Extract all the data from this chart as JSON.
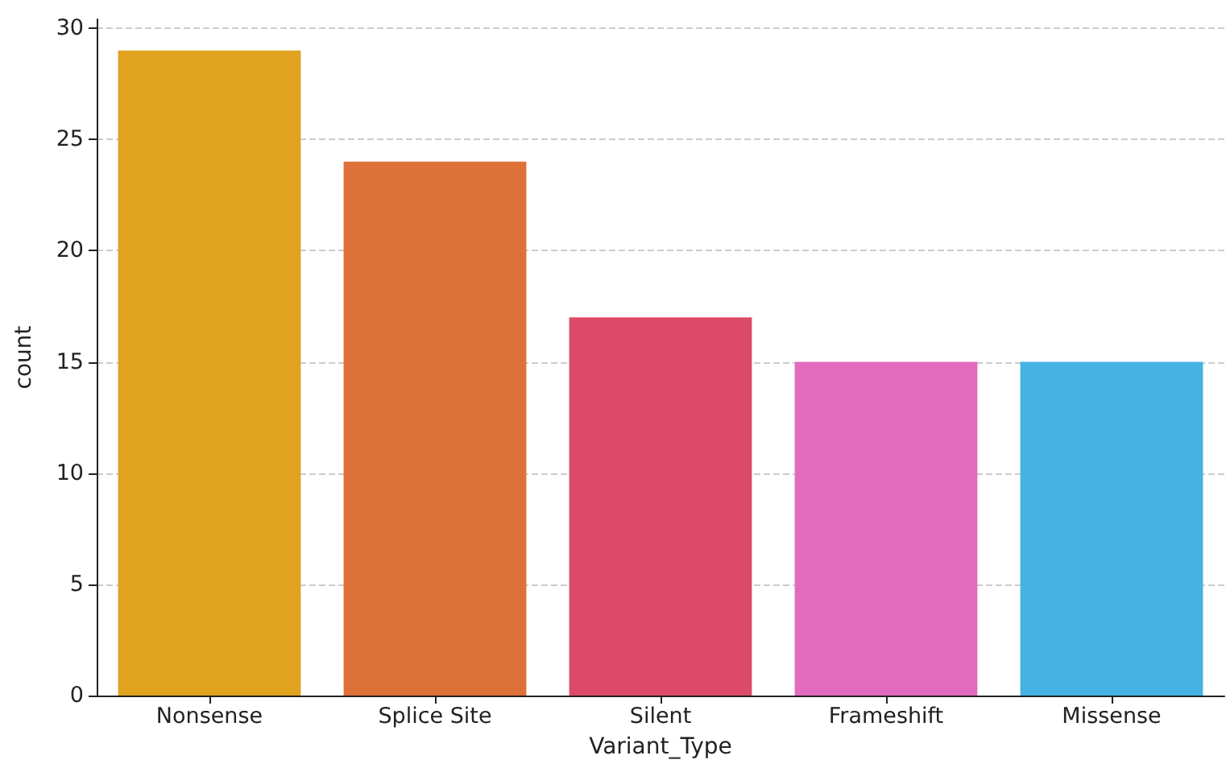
{
  "chart_data": {
    "type": "bar",
    "xlabel": "Variant_Type",
    "ylabel": "count",
    "categories": [
      "Nonsense",
      "Splice Site",
      "Silent",
      "Frameshift",
      "Missense"
    ],
    "values": [
      29,
      24,
      17,
      15,
      15
    ],
    "colors": [
      "#e0a21f",
      "#dd7138",
      "#dc4a67",
      "#e36bbd",
      "#44b2e2"
    ],
    "ylim": [
      0,
      30.4
    ],
    "yticks": [
      0,
      5,
      10,
      15,
      20,
      25,
      30
    ],
    "grid": "y"
  }
}
